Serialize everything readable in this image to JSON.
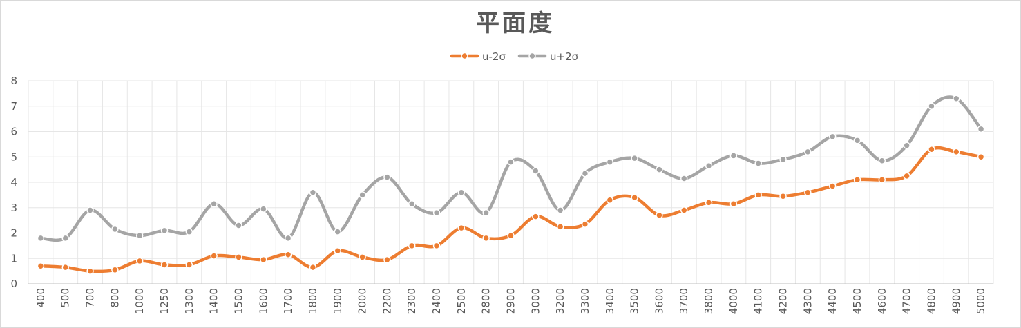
{
  "chart_data": {
    "type": "line",
    "smooth": true,
    "title": "平面度",
    "xlabel": "",
    "ylabel": "",
    "ylim": [
      0,
      8
    ],
    "y_ticks": [
      "0",
      "1",
      "2",
      "3",
      "4",
      "5",
      "6",
      "7",
      "8"
    ],
    "grid": true,
    "legend_position": "top",
    "categories": [
      "400",
      "500",
      "700",
      "800",
      "1000",
      "1250",
      "1300",
      "1400",
      "1500",
      "1600",
      "1700",
      "1800",
      "1900",
      "2000",
      "2200",
      "2300",
      "2400",
      "2500",
      "2800",
      "2900",
      "3000",
      "3200",
      "3300",
      "3400",
      "3500",
      "3600",
      "3700",
      "3800",
      "4000",
      "4100",
      "4200",
      "4300",
      "4400",
      "4500",
      "4600",
      "4700",
      "4800",
      "4900",
      "5000"
    ],
    "series": [
      {
        "name": "u-2σ",
        "color": "#ed7d31",
        "values": [
          0.7,
          0.65,
          0.5,
          0.55,
          0.9,
          0.75,
          0.75,
          1.1,
          1.05,
          0.95,
          1.15,
          0.65,
          1.3,
          1.05,
          0.95,
          1.5,
          1.5,
          2.2,
          1.8,
          1.9,
          2.65,
          2.25,
          2.35,
          3.3,
          3.4,
          2.7,
          2.9,
          3.2,
          3.15,
          3.5,
          3.45,
          3.6,
          3.85,
          4.1,
          4.1,
          4.25,
          5.3,
          5.2,
          5.0
        ]
      },
      {
        "name": "u+2σ",
        "color": "#a5a5a5",
        "values": [
          1.8,
          1.8,
          2.9,
          2.15,
          1.9,
          2.1,
          2.05,
          3.15,
          2.3,
          2.95,
          1.8,
          3.6,
          2.05,
          3.5,
          4.2,
          3.15,
          2.8,
          3.6,
          2.8,
          4.8,
          4.45,
          2.9,
          4.35,
          4.8,
          4.95,
          4.5,
          4.15,
          4.65,
          5.05,
          4.75,
          4.9,
          5.2,
          5.8,
          5.65,
          4.85,
          5.45,
          7.0,
          7.3,
          6.1
        ]
      }
    ]
  }
}
